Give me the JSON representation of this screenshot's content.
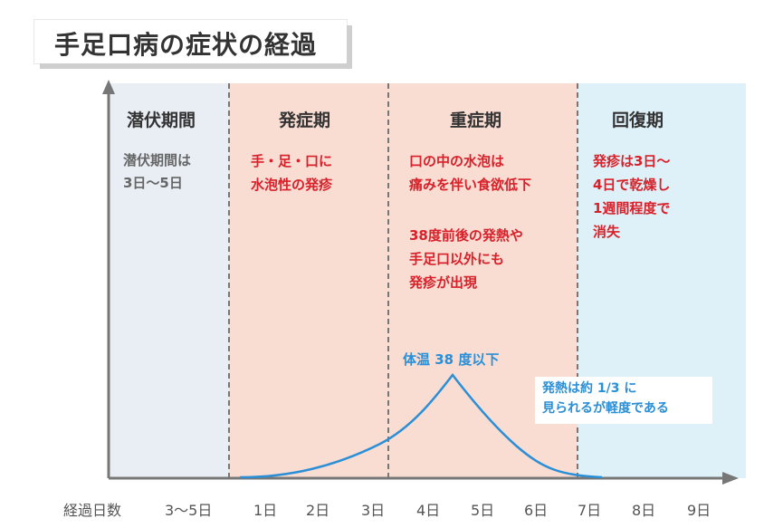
{
  "title": "手足口病の症状の経過",
  "phases": [
    {
      "name": "潜伏期間",
      "text": "潜伏期間は\n3日〜5日"
    },
    {
      "name": "発症期",
      "text": "手・足・口に\n水泡性の発疹"
    },
    {
      "name": "重症期",
      "text": "口の中の水泡は\n痛みを伴い食欲低下",
      "text2": "38度前後の発熱や\n手足口以外にも\n発疹が出現"
    },
    {
      "name": "回復期",
      "text": "発疹は3日〜\n4日で乾燥し\n1週間程度で\n消失"
    }
  ],
  "fever_label": "体温 38 度以下",
  "fever_note": "発熱は約 1/3 に\n見られるが軽度である",
  "x_axis": {
    "label": "経過日数",
    "ticks": [
      "3〜5日",
      "1日",
      "2日",
      "3日",
      "4日",
      "5日",
      "6日",
      "7日",
      "8日",
      "9日"
    ]
  },
  "colors": {
    "latent_bg": "#e8eef4",
    "onset_bg": "#f9dcd2",
    "recovery_bg": "#dff1f8",
    "emphasis_red": "#d8212a",
    "fever_blue": "#2a8fd6"
  },
  "icons": [
    "y-axis-arrow-icon",
    "x-axis-arrow-icon"
  ]
}
